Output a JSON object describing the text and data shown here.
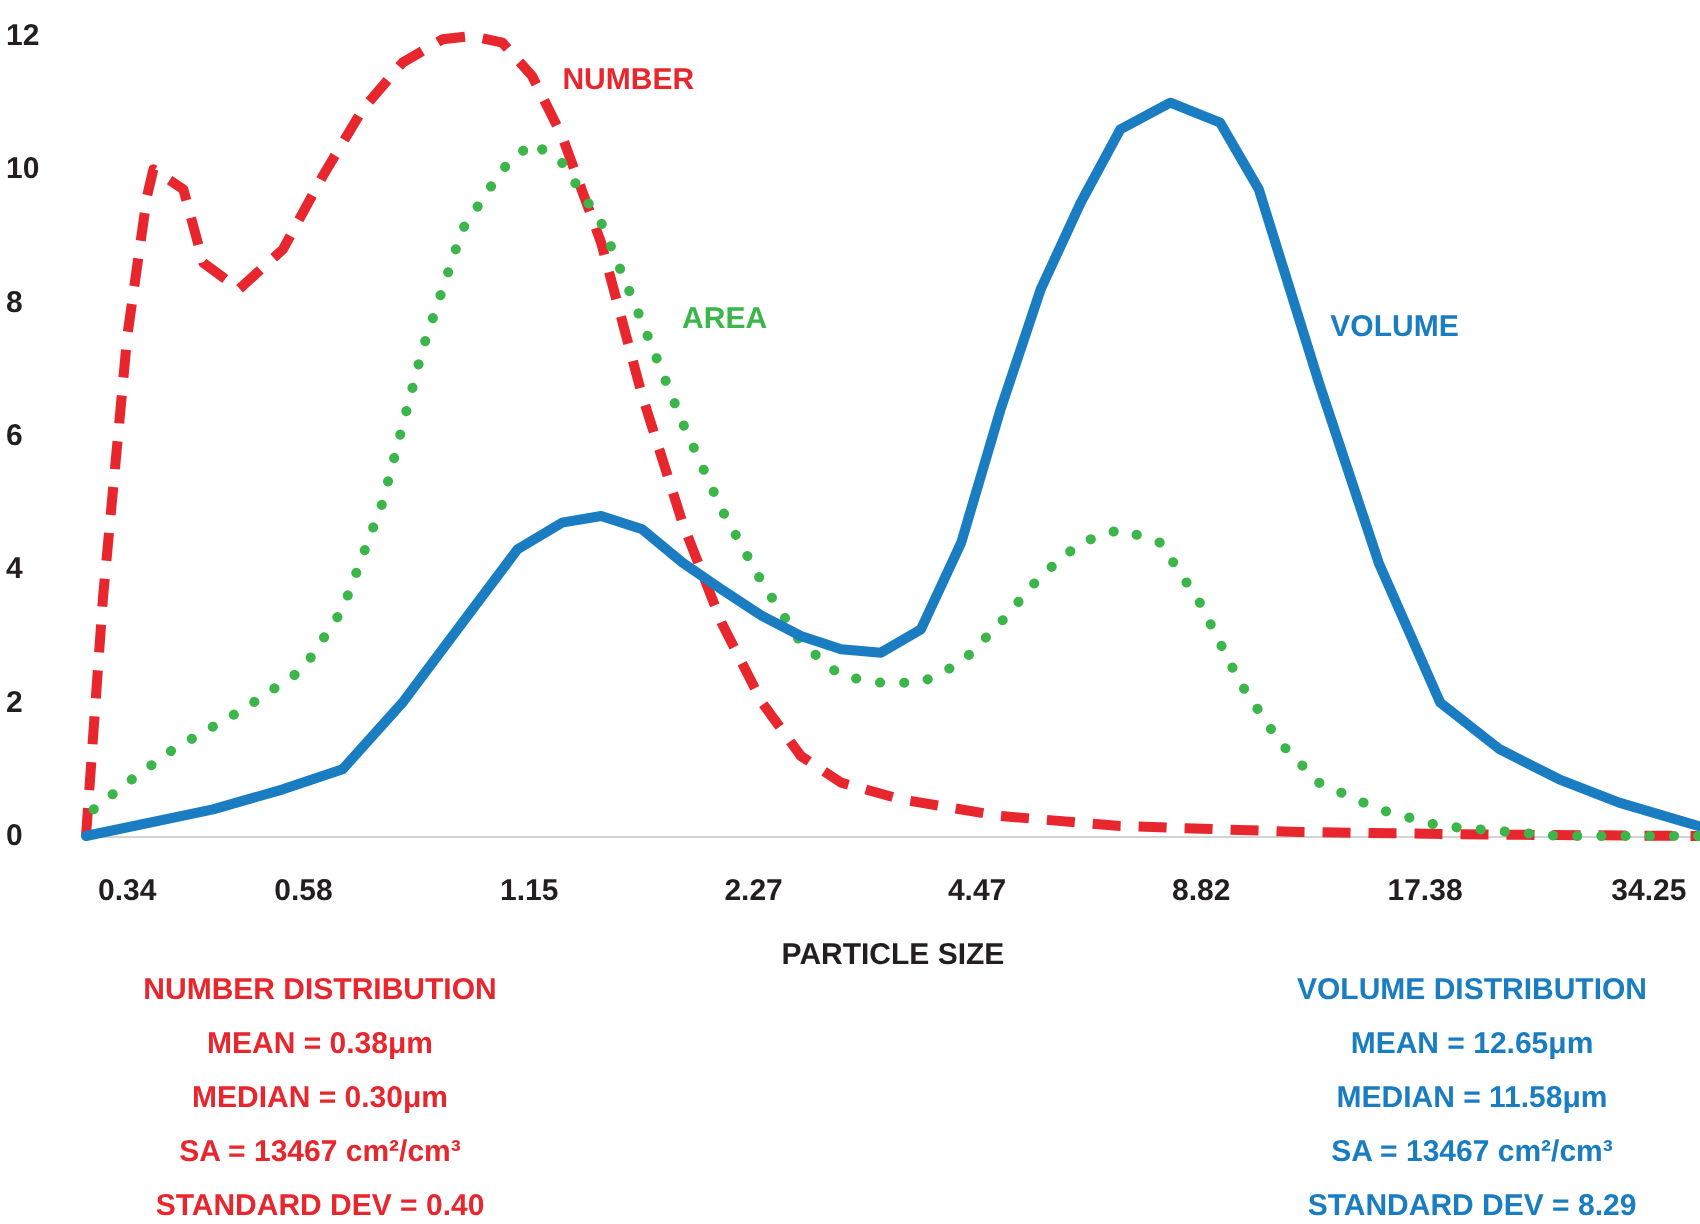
{
  "chart_data": {
    "type": "line",
    "xlabel": "PARTICLE SIZE",
    "log": "x",
    "xlim": [
      0.3,
      40
    ],
    "xticks": [
      0.34,
      0.58,
      1.15,
      2.27,
      4.47,
      8.82,
      17.38,
      34.25
    ],
    "ylim": [
      0,
      12
    ],
    "yticks": [
      0,
      2,
      4,
      6,
      8,
      10,
      12
    ],
    "grid": false,
    "legend": false,
    "marker": "none",
    "series": [
      {
        "name": "NUMBER",
        "color": "#e8262d",
        "line_style": "dashed",
        "x": [
          0.3,
          0.316,
          0.34,
          0.361,
          0.368,
          0.403,
          0.428,
          0.477,
          0.545,
          0.615,
          0.694,
          0.783,
          0.884,
          0.968,
          1.06,
          1.16,
          1.27,
          1.43,
          1.62,
          1.83,
          2.06,
          2.33,
          2.62,
          2.96,
          3.55,
          4.8,
          6.9,
          11.9,
          21.8,
          39.8
        ],
        "values": [
          0,
          3.6,
          7.5,
          9.6,
          10.0,
          9.7,
          8.6,
          8.2,
          8.8,
          9.9,
          10.9,
          11.6,
          11.95,
          12.0,
          11.9,
          11.4,
          10.5,
          8.9,
          6.6,
          4.7,
          3.2,
          2.0,
          1.2,
          0.8,
          0.55,
          0.3,
          0.15,
          0.06,
          0.02,
          0
        ]
      },
      {
        "name": "AREA",
        "color": "#3cb54a",
        "line_style": "dotted",
        "x": [
          0.307,
          0.34,
          0.391,
          0.483,
          0.579,
          0.653,
          0.737,
          0.832,
          0.939,
          1.06,
          1.16,
          1.27,
          1.43,
          1.62,
          1.83,
          2.06,
          2.33,
          2.62,
          2.96,
          3.34,
          3.77,
          4.26,
          4.8,
          5.42,
          6.12,
          6.9,
          7.79,
          8.78,
          9.92,
          11.2,
          12.6,
          15.1,
          18.2,
          26.1,
          39.8
        ],
        "values": [
          0.4,
          0.8,
          1.3,
          1.9,
          2.5,
          3.4,
          5.0,
          7.3,
          9.1,
          10.0,
          10.4,
          10.1,
          9.2,
          7.7,
          6.2,
          4.9,
          3.8,
          2.9,
          2.4,
          2.3,
          2.3,
          2.6,
          3.2,
          3.9,
          4.4,
          4.6,
          4.4,
          3.5,
          2.3,
          1.4,
          0.8,
          0.4,
          0.15,
          0,
          0
        ]
      },
      {
        "name": "VOLUME",
        "color": "#1a7cc1",
        "line_style": "solid",
        "x": [
          0.3,
          0.441,
          0.545,
          0.653,
          0.783,
          0.939,
          1.11,
          1.27,
          1.43,
          1.62,
          1.83,
          2.06,
          2.33,
          2.62,
          2.96,
          3.34,
          3.77,
          4.26,
          4.8,
          5.42,
          6.12,
          6.9,
          8.03,
          9.34,
          10.5,
          12.6,
          15.1,
          18.2,
          21.8,
          26.1,
          31.3,
          39.8
        ],
        "values": [
          0,
          0.4,
          0.7,
          1.0,
          2.0,
          3.2,
          4.3,
          4.7,
          4.8,
          4.6,
          4.1,
          3.7,
          3.3,
          3.0,
          2.8,
          2.75,
          3.1,
          4.4,
          6.4,
          8.2,
          9.5,
          10.6,
          11.0,
          10.7,
          9.7,
          6.8,
          4.1,
          2.0,
          1.3,
          0.85,
          0.5,
          0.15
        ]
      }
    ],
    "annotations": [
      "NUMBER DISTRIBUTION",
      "MEAN = 0.38μm",
      "MEDIAN = 0.30μm",
      "SA = 13467 cm²/cm³",
      "STANDARD DEV = 0.40",
      "VOLUME DISTRIBUTION",
      "MEAN = 12.65μm",
      "MEDIAN = 11.58μm",
      "SA = 13467 cm²/cm³",
      "STANDARD DEV = 8.29"
    ]
  }
}
